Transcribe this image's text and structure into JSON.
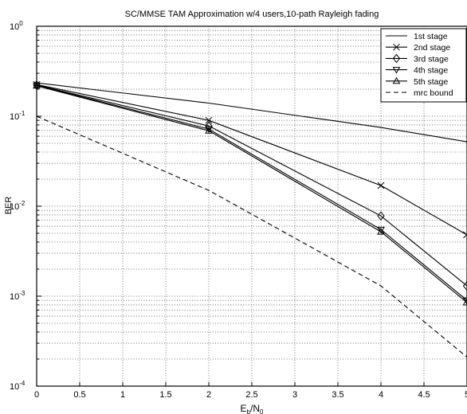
{
  "chart_data": {
    "type": "line",
    "title": "SC/MMSE TAM Approximation w/4 users,10-path Rayleigh fading",
    "xlabel": "E_b/N_0",
    "ylabel": "BER",
    "xlim": [
      0,
      5
    ],
    "ylim": [
      0.0001,
      1
    ],
    "yscale": "log",
    "grid": true,
    "legend_position": "top-right",
    "x_ticks": [
      "0",
      "0.5",
      "1",
      "1.5",
      "2",
      "2.5",
      "3",
      "3.5",
      "4",
      "4.5",
      "5"
    ],
    "y_ticks": [
      {
        "base": "10",
        "exp": "0",
        "value": 1
      },
      {
        "base": "10",
        "exp": "-1",
        "value": 0.1
      },
      {
        "base": "10",
        "exp": "-2",
        "value": 0.01
      },
      {
        "base": "10",
        "exp": "-3",
        "value": 0.001
      },
      {
        "base": "10",
        "exp": "-4",
        "value": 0.0001
      }
    ],
    "series": [
      {
        "name": "1st stage",
        "marker": "none",
        "dash": "solid",
        "x": [
          0,
          2,
          4,
          5
        ],
        "y": [
          0.235,
          0.14,
          0.075,
          0.052
        ]
      },
      {
        "name": "2nd stage",
        "marker": "x",
        "dash": "solid",
        "x": [
          0,
          2,
          4,
          5
        ],
        "y": [
          0.225,
          0.09,
          0.017,
          0.0048
        ]
      },
      {
        "name": "3rd stage",
        "marker": "diamond",
        "dash": "solid",
        "x": [
          0,
          2,
          4,
          5
        ],
        "y": [
          0.222,
          0.078,
          0.0078,
          0.0013
        ]
      },
      {
        "name": "4th stage",
        "marker": "triangle-down",
        "dash": "solid",
        "x": [
          0,
          2,
          4,
          5
        ],
        "y": [
          0.22,
          0.072,
          0.0055,
          0.0009
        ]
      },
      {
        "name": "5th stage",
        "marker": "triangle-up",
        "dash": "solid",
        "x": [
          0,
          2,
          4,
          5
        ],
        "y": [
          0.218,
          0.069,
          0.0052,
          0.00085
        ]
      },
      {
        "name": "mrc bound",
        "marker": "none",
        "dash": "dashed",
        "x": [
          0,
          2,
          4,
          5
        ],
        "y": [
          0.1,
          0.015,
          0.0013,
          0.00021
        ]
      }
    ]
  }
}
